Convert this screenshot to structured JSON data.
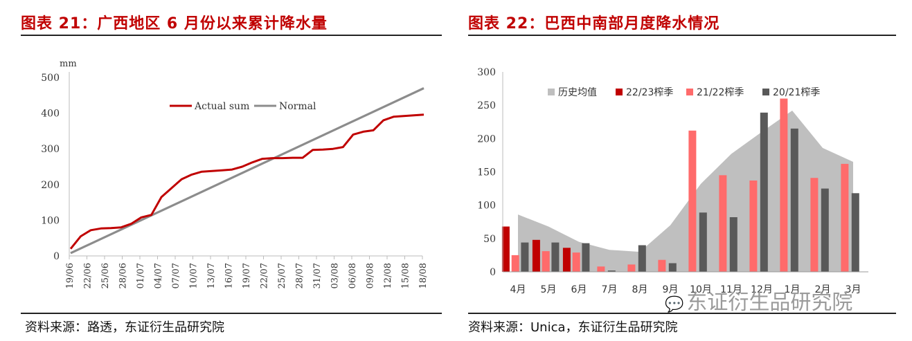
{
  "left_panel": {
    "title": "图表 21：广西地区 6 月份以来累计降水量",
    "source": "资料来源：路透，东证衍生品研究院"
  },
  "right_panel": {
    "title": "图表 22：巴西中南部月度降水情况",
    "source": "资料来源：Unica，东证衍生品研究院"
  },
  "watermark": "东证衍生品研究院",
  "chart_data": [
    {
      "type": "line",
      "title": "",
      "ylabel": "mm",
      "xlabel": "",
      "ylim": [
        0,
        500
      ],
      "yticks": [
        0,
        100,
        200,
        300,
        400,
        500
      ],
      "x_tick_labels": [
        "19/06",
        "22/06",
        "25/06",
        "28/06",
        "01/07",
        "04/07",
        "07/07",
        "10/07",
        "13/07",
        "16/07",
        "19/07",
        "22/07",
        "25/07",
        "28/07",
        "31/07",
        "03/08",
        "06/08",
        "09/08",
        "12/08",
        "15/08",
        "18/08"
      ],
      "legend": [
        "Actual sum",
        "Normal"
      ],
      "colors": {
        "actual": "#c00000",
        "normal": "#8c8c8c"
      },
      "series": [
        {
          "name": "Actual sum",
          "values": [
            20,
            55,
            72,
            77,
            78,
            80,
            90,
            108,
            115,
            165,
            190,
            215,
            228,
            236,
            238,
            240,
            242,
            250,
            262,
            272,
            274,
            274,
            275,
            275,
            297,
            298,
            300,
            305,
            340,
            348,
            352,
            380,
            390,
            392,
            394,
            396
          ]
        },
        {
          "name": "Normal",
          "values": [
            8,
            470
          ]
        }
      ]
    },
    {
      "type": "bar",
      "title": "",
      "ylim": [
        0,
        300
      ],
      "yticks": [
        0,
        50,
        100,
        150,
        200,
        250,
        300
      ],
      "categories": [
        "4月",
        "5月",
        "6月",
        "7月",
        "8月",
        "9月",
        "10月",
        "11月",
        "12月",
        "1月",
        "2月",
        "3月"
      ],
      "legend": [
        "历史均值",
        "22/23榨季",
        "21/22榨季",
        "20/21榨季"
      ],
      "colors": {
        "avg": "#bfbfbf",
        "s2223": "#c00000",
        "s2122": "#ff6b6b",
        "s2021": "#595959"
      },
      "series": [
        {
          "name": "历史均值",
          "values": [
            86,
            68,
            45,
            33,
            30,
            70,
            132,
            177,
            210,
            242,
            186,
            165
          ]
        },
        {
          "name": "22/23榨季",
          "values": [
            68,
            48,
            36,
            null,
            null,
            null,
            null,
            null,
            null,
            null,
            null,
            null
          ]
        },
        {
          "name": "21/22榨季",
          "values": [
            25,
            31,
            29,
            8,
            11,
            18,
            212,
            145,
            137,
            260,
            141,
            162
          ]
        },
        {
          "name": "20/21榨季",
          "values": [
            44,
            44,
            43,
            2,
            40,
            13,
            89,
            82,
            239,
            215,
            125,
            118
          ]
        }
      ]
    }
  ]
}
